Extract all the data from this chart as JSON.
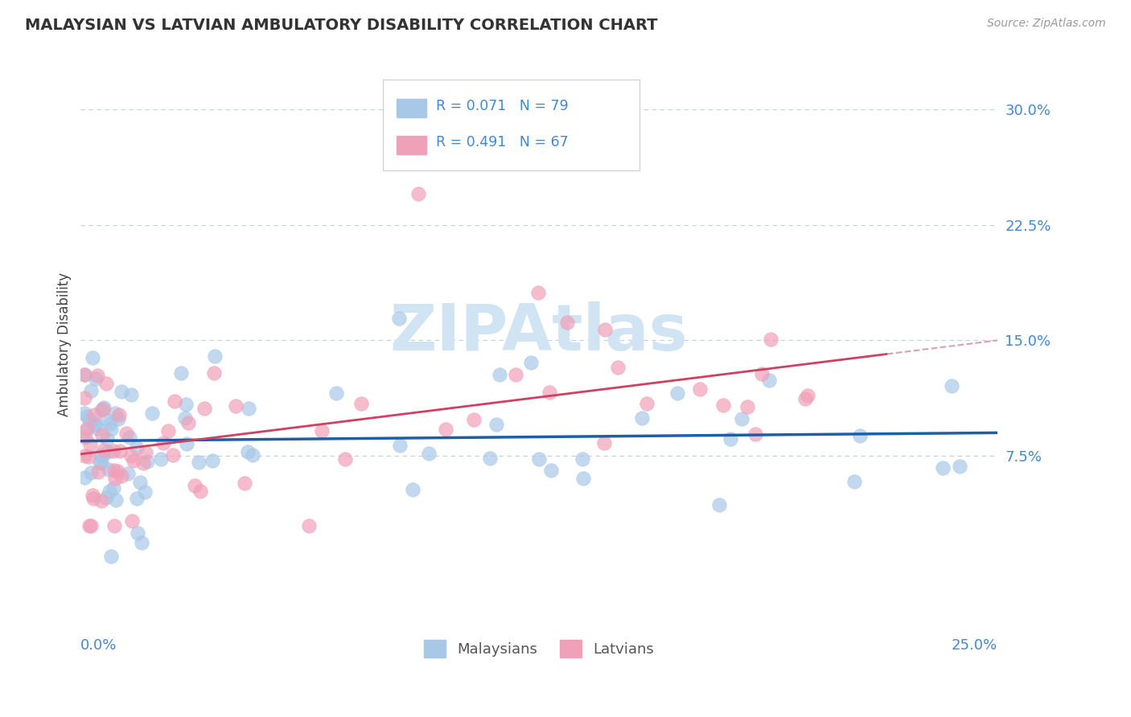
{
  "title": "MALAYSIAN VS LATVIAN AMBULATORY DISABILITY CORRELATION CHART",
  "source": "Source: ZipAtlas.com",
  "ylabel": "Ambulatory Disability",
  "ytick_vals": [
    0.075,
    0.15,
    0.225,
    0.3
  ],
  "ytick_labels": [
    "7.5%",
    "15.0%",
    "22.5%",
    "30.0%"
  ],
  "xmin": 0.0,
  "xmax": 0.25,
  "ymin": -0.04,
  "ymax": 0.335,
  "malaysian_R": 0.071,
  "malaysian_N": 79,
  "latvian_R": 0.491,
  "latvian_N": 67,
  "dot_color_malaysian": "#a8c8e8",
  "dot_color_latvian": "#f0a0b8",
  "line_color_malaysian": "#1a5fa8",
  "line_color_latvian": "#d04060",
  "background_color": "#ffffff",
  "grid_color": "#c0d0e0",
  "title_color": "#333333",
  "label_color": "#4488cc",
  "watermark_color": "#d0e4f4",
  "legend_label_malaysian": "Malaysians",
  "legend_label_latvian": "Latvians"
}
